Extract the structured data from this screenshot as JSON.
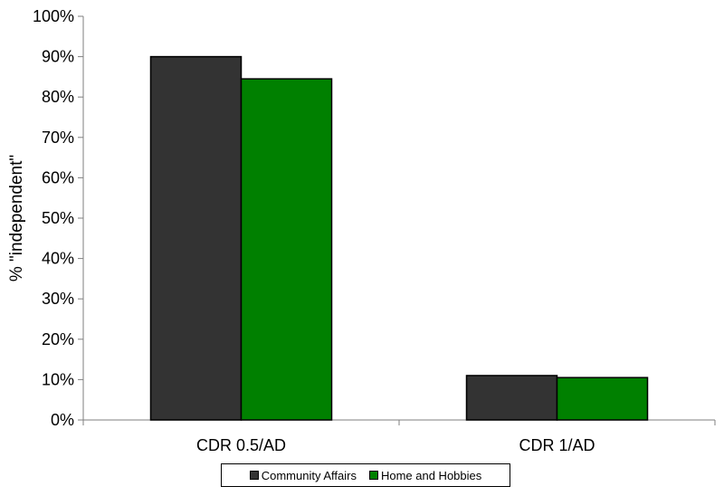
{
  "chart_data": {
    "type": "bar",
    "categories": [
      "CDR 0.5/AD",
      "CDR 1/AD"
    ],
    "series": [
      {
        "name": "Community Affairs",
        "values": [
          90,
          11
        ],
        "color": "#333333"
      },
      {
        "name": "Home and Hobbies",
        "values": [
          84.5,
          10.5
        ],
        "color": "#008000"
      }
    ],
    "ylabel": "% \"independent\"",
    "xlabel": "",
    "ylim": [
      0,
      100
    ],
    "yticks": [
      "0%",
      "10%",
      "20%",
      "30%",
      "40%",
      "50%",
      "60%",
      "70%",
      "80%",
      "90%",
      "100%"
    ],
    "ytick_values": [
      0,
      10,
      20,
      30,
      40,
      50,
      60,
      70,
      80,
      90,
      100
    ],
    "legend_position": "bottom",
    "grid": false
  }
}
